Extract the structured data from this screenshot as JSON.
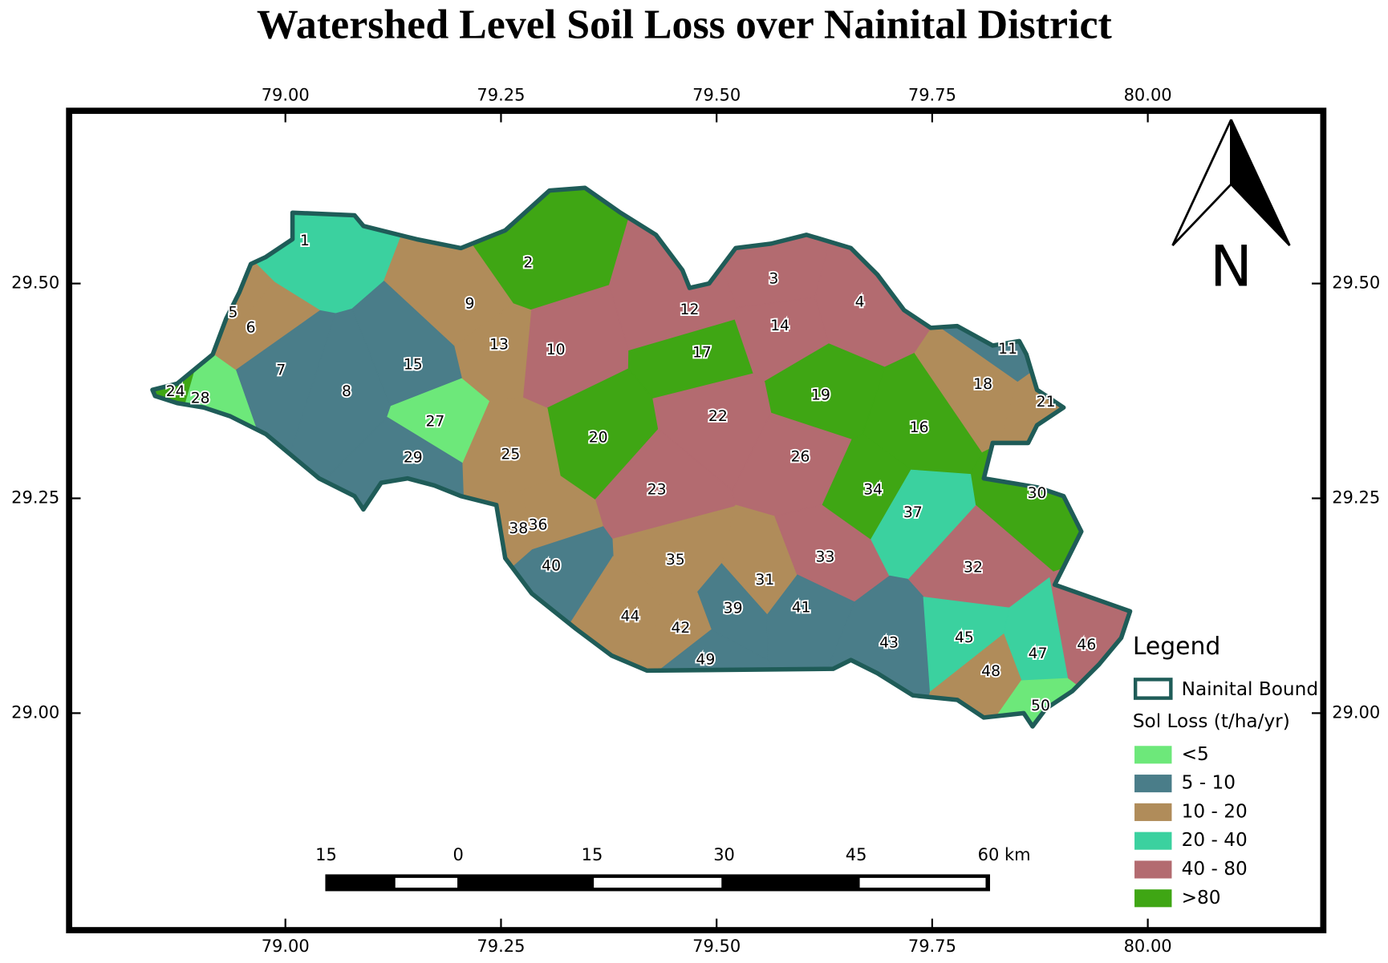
{
  "title": "Watershed Level Soil Loss over Nainital District",
  "lon_ticks": [
    {
      "value": 79,
      "label": "79.00"
    },
    {
      "value": 79.25,
      "label": "79.25"
    },
    {
      "value": 79.5,
      "label": "79.50"
    },
    {
      "value": 79.75,
      "label": "79.75"
    },
    {
      "value": 80,
      "label": "80.00"
    }
  ],
  "lat_ticks": [
    {
      "value": 29.5,
      "label": "29.50"
    },
    {
      "value": 29.25,
      "label": "29.25"
    },
    {
      "value": 29,
      "label": "29.00"
    }
  ],
  "north": "N",
  "legend": {
    "title": "Legend",
    "boundary": "Nainital Bound",
    "class_title": "Sol Loss (t/ha/yr)",
    "classes": [
      {
        "label": "<5",
        "color": "#6de87a"
      },
      {
        "label": "5 - 10",
        "color": "#4a7d89"
      },
      {
        "label": "10 - 20",
        "color": "#b08c5a"
      },
      {
        "label": "20 - 40",
        "color": "#3bd19f"
      },
      {
        "label": "40 - 80",
        "color": "#b36b70"
      },
      {
        "label": ">80",
        "color": "#3fa614"
      }
    ]
  },
  "scale_bar": [
    "15",
    "0",
    "15",
    "30",
    "45",
    "60 km"
  ],
  "watersheds": [
    {
      "label": "1",
      "class": "20 - 40"
    },
    {
      "label": "2",
      "class": ">80"
    },
    {
      "label": "3",
      "class": "40 - 80"
    },
    {
      "label": "4",
      "class": "40 - 80"
    },
    {
      "label": "5",
      "class": "10 - 20"
    },
    {
      "label": "6",
      "class": "10 - 20"
    },
    {
      "label": "7",
      "class": "5 - 10"
    },
    {
      "label": "8",
      "class": "5 - 10"
    },
    {
      "label": "9",
      "class": "10 - 20"
    },
    {
      "label": "10",
      "class": "40 - 80"
    },
    {
      "label": "11",
      "class": "5 - 10"
    },
    {
      "label": "12",
      "class": "40 - 80"
    },
    {
      "label": "13",
      "class": "10 - 20"
    },
    {
      "label": "14",
      "class": "40 - 80"
    },
    {
      "label": "15",
      "class": "5 - 10"
    },
    {
      "label": "16",
      "class": ">80"
    },
    {
      "label": "17",
      "class": ">80"
    },
    {
      "label": "18",
      "class": "10 - 20"
    },
    {
      "label": "19",
      "class": ">80"
    },
    {
      "label": "20",
      "class": ">80"
    },
    {
      "label": "21",
      "class": "10 - 20"
    },
    {
      "label": "22",
      "class": "40 - 80"
    },
    {
      "label": "23",
      "class": "40 - 80"
    },
    {
      "label": "24",
      "class": ">80"
    },
    {
      "label": "25",
      "class": "10 - 20"
    },
    {
      "label": "26",
      "class": "40 - 80"
    },
    {
      "label": "27",
      "class": "<5"
    },
    {
      "label": "28",
      "class": "<5"
    },
    {
      "label": "29",
      "class": "5 - 10"
    },
    {
      "label": "30",
      "class": ">80"
    },
    {
      "label": "31",
      "class": "10 - 20"
    },
    {
      "label": "32",
      "class": "40 - 80"
    },
    {
      "label": "33",
      "class": "40 - 80"
    },
    {
      "label": "34",
      "class": ">80"
    },
    {
      "label": "35",
      "class": "10 - 20"
    },
    {
      "label": "36",
      "class": "10 - 20"
    },
    {
      "label": "37",
      "class": "20 - 40"
    },
    {
      "label": "38",
      "class": "10 - 20"
    },
    {
      "label": "39",
      "class": "5 - 10"
    },
    {
      "label": "40",
      "class": "5 - 10"
    },
    {
      "label": "41",
      "class": "5 - 10"
    },
    {
      "label": "42",
      "class": "10 - 20"
    },
    {
      "label": "43",
      "class": "5 - 10"
    },
    {
      "label": "44",
      "class": "10 - 20"
    },
    {
      "label": "45",
      "class": "20 - 40"
    },
    {
      "label": "46",
      "class": "40 - 80"
    },
    {
      "label": "47",
      "class": "20 - 40"
    },
    {
      "label": "48",
      "class": "10 - 20"
    },
    {
      "label": "49",
      "class": "5 - 10"
    },
    {
      "label": "50",
      "class": "<5"
    }
  ]
}
